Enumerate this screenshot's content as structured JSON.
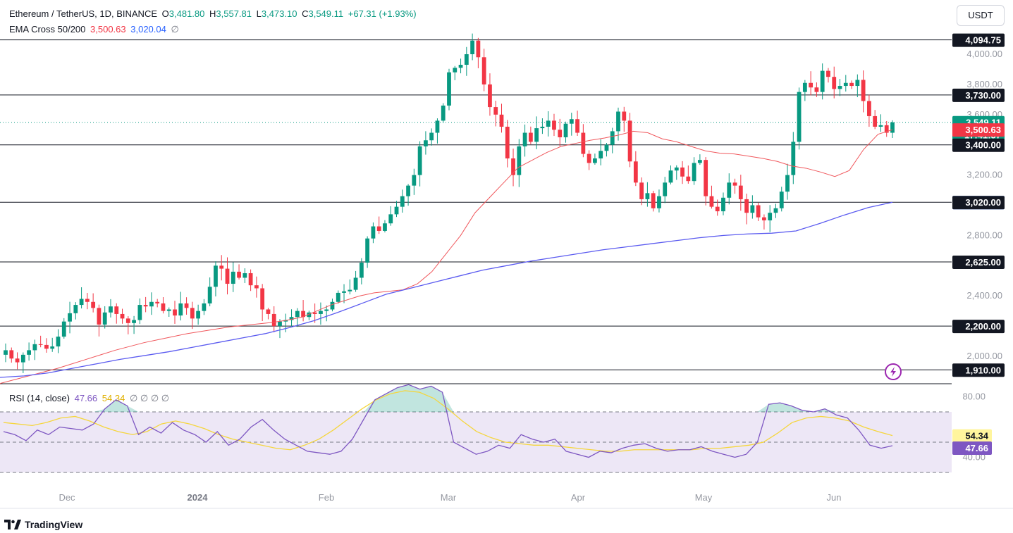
{
  "header": {
    "symbol": "Ethereum / TetherUS, 1D, BINANCE",
    "open_label": "O",
    "open": "3,481.80",
    "high_label": "H",
    "high": "3,557.81",
    "low_label": "L",
    "low": "3,473.10",
    "close_label": "C",
    "close": "3,549.11",
    "change": "+67.31 (+1.93%)",
    "ema_label": "EMA Cross 50/200",
    "ema50": "3,500.63",
    "ema200": "3,020.04",
    "ema_empty": "∅"
  },
  "currency_button": "USDT",
  "rsi_legend": {
    "label": "RSI (14, close)",
    "rsi": "47.66",
    "ma": "54.34",
    "empties": "∅ ∅ ∅ ∅"
  },
  "footer": {
    "brand": "TradingView"
  },
  "colors": {
    "up": "#089981",
    "down": "#f23645",
    "ema50": "#f0575c",
    "ema200": "#5b5bf0",
    "rsi_line": "#7e57c2",
    "rsi_ma": "#f5d63d",
    "rsi_band": "#ede7f6"
  },
  "chart_data": {
    "type": "candlestick",
    "title": "Ethereum / TetherUS, 1D, BINANCE",
    "y_ticks": [
      "4,000.00",
      "3,800.00",
      "3,600.00",
      "3,200.00",
      "2,800.00",
      "2,400.00",
      "2,000.00"
    ],
    "x_ticks": [
      "Dec",
      "2024",
      "Feb",
      "Mar",
      "Apr",
      "May",
      "Jun"
    ],
    "horizontal_levels": [
      4094.75,
      3730.0,
      3400.0,
      3020.0,
      2625.0,
      2200.0,
      1910.0
    ],
    "price_labels": [
      {
        "text": "4,094.75",
        "style": "level"
      },
      {
        "text": "3,730.00",
        "style": "level"
      },
      {
        "text": "3,549.11",
        "style": "last"
      },
      {
        "text": "17:41:57",
        "style": "last"
      },
      {
        "text": "3,500.63",
        "style": "ema50"
      },
      {
        "text": "3,400.00",
        "style": "level"
      },
      {
        "text": "3,020.04",
        "style": "ema200"
      },
      {
        "text": "3,020.00",
        "style": "level"
      },
      {
        "text": "2,625.00",
        "style": "level"
      },
      {
        "text": "2,200.00",
        "style": "level"
      },
      {
        "text": "1,910.00",
        "style": "level"
      }
    ],
    "ylim": [
      1860,
      4180
    ],
    "closes": [
      2040,
      1985,
      1960,
      2010,
      2040,
      2080,
      2075,
      2050,
      2065,
      2130,
      2230,
      2285,
      2340,
      2380,
      2360,
      2320,
      2210,
      2290,
      2330,
      2280,
      2250,
      2220,
      2240,
      2340,
      2330,
      2360,
      2350,
      2300,
      2310,
      2270,
      2350,
      2320,
      2250,
      2300,
      2350,
      2460,
      2600,
      2580,
      2480,
      2560,
      2520,
      2550,
      2470,
      2450,
      2310,
      2280,
      2200,
      2230,
      2240,
      2260,
      2300,
      2260,
      2290,
      2280,
      2300,
      2310,
      2360,
      2420,
      2430,
      2440,
      2520,
      2620,
      2780,
      2860,
      2830,
      2880,
      2940,
      2990,
      3060,
      3130,
      3200,
      3390,
      3430,
      3480,
      3560,
      3660,
      3880,
      3910,
      3930,
      4000,
      4090,
      3980,
      3800,
      3650,
      3600,
      3520,
      3310,
      3200,
      3390,
      3480,
      3420,
      3510,
      3520,
      3560,
      3500,
      3450,
      3540,
      3570,
      3480,
      3340,
      3280,
      3310,
      3360,
      3400,
      3490,
      3620,
      3560,
      3290,
      3150,
      3040,
      3080,
      2980,
      3060,
      3150,
      3230,
      3250,
      3190,
      3160,
      3280,
      3300,
      3060,
      2990,
      2960,
      3050,
      3150,
      3130,
      3040,
      2950,
      3000,
      2920,
      2900,
      2950,
      2980,
      3090,
      3200,
      3420,
      3750,
      3810,
      3780,
      3750,
      3890,
      3850,
      3770,
      3790,
      3810,
      3790,
      3830,
      3690,
      3590,
      3520,
      3530,
      3480,
      3549
    ],
    "ema50": [
      1820,
      1845,
      1870,
      1895,
      1920,
      1950,
      1980,
      2010,
      2040,
      2065,
      2090,
      2110,
      2130,
      2150,
      2165,
      2180,
      2195,
      2205,
      2215,
      2225,
      2240,
      2260,
      2300,
      2340,
      2370,
      2400,
      2420,
      2430,
      2440,
      2480,
      2560,
      2680,
      2800,
      2950,
      3050,
      3150,
      3250,
      3300,
      3350,
      3390,
      3410,
      3430,
      3445,
      3465,
      3490,
      3480,
      3440,
      3420,
      3390,
      3360,
      3345,
      3340,
      3325,
      3310,
      3290,
      3260,
      3245,
      3220,
      3190,
      3230,
      3370,
      3470,
      3500
    ],
    "ema200": [
      1860,
      1870,
      1890,
      1920,
      1950,
      1980,
      2005,
      2030,
      2060,
      2090,
      2120,
      2150,
      2190,
      2235,
      2290,
      2350,
      2410,
      2450,
      2490,
      2530,
      2570,
      2600,
      2630,
      2655,
      2680,
      2705,
      2725,
      2745,
      2765,
      2785,
      2800,
      2810,
      2815,
      2830,
      2880,
      2935,
      2985,
      3020
    ],
    "rsi": [
      57,
      55,
      51,
      58,
      55,
      60,
      59,
      58,
      62,
      72,
      78,
      74,
      55,
      60,
      56,
      63,
      58,
      55,
      50,
      57,
      48,
      52,
      60,
      65,
      58,
      52,
      48,
      44,
      43,
      42,
      44,
      52,
      65,
      78,
      82,
      86,
      88,
      85,
      87,
      83,
      50,
      46,
      42,
      44,
      48,
      46,
      55,
      52,
      50,
      52,
      44,
      42,
      40,
      44,
      43,
      46,
      48,
      49,
      46,
      44,
      45,
      45,
      47,
      44,
      42,
      40,
      42,
      50,
      75,
      76,
      74,
      71,
      70,
      72,
      68,
      66,
      58,
      48,
      46,
      47.66
    ],
    "rsi_ma": [
      63,
      62,
      61,
      63,
      66,
      67,
      64,
      60,
      57,
      55,
      57,
      62,
      64,
      62,
      59,
      55,
      52,
      50,
      48,
      46,
      45,
      48,
      52,
      58,
      65,
      72,
      78,
      82,
      84,
      83,
      79,
      72,
      64,
      57,
      53,
      50,
      49,
      48,
      48,
      47,
      46,
      45,
      44,
      44,
      45,
      45,
      45,
      45,
      45,
      46,
      46,
      47,
      48,
      50,
      56,
      63,
      66,
      67,
      66,
      64,
      60,
      57,
      54.34
    ],
    "rsi_levels": {
      "upper": 70,
      "middle": 50,
      "lower": 30
    },
    "rsi_ticks": [
      "80.00",
      "40.00"
    ]
  }
}
